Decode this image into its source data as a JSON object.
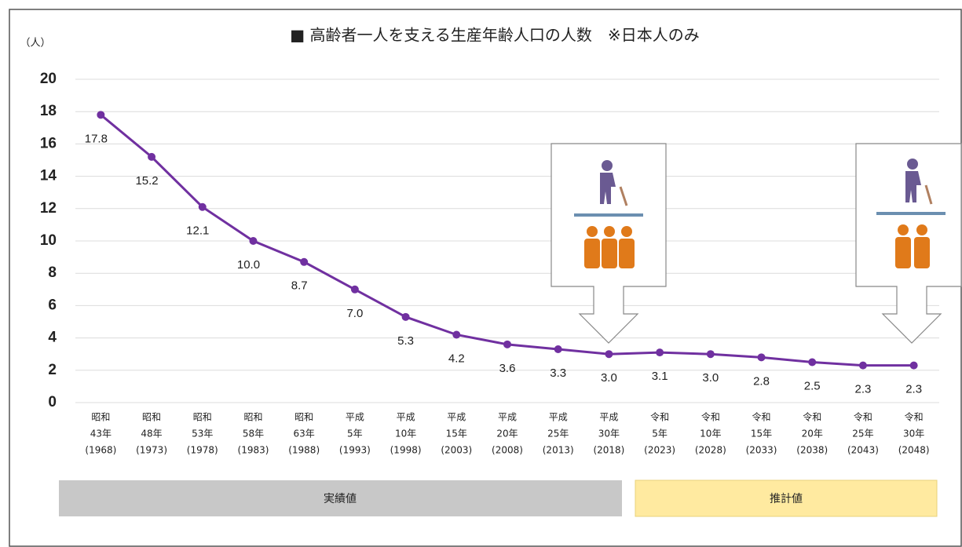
{
  "chart_data": {
    "type": "line",
    "title": "■ 高齢者一人を支える生産年齢人口の人数　※日本人のみ",
    "y_label": "（人）",
    "categories": [
      [
        "昭和",
        "43年",
        "(1968)"
      ],
      [
        "昭和",
        "48年",
        "(1973)"
      ],
      [
        "昭和",
        "53年",
        "(1978)"
      ],
      [
        "昭和",
        "58年",
        "(1983)"
      ],
      [
        "昭和",
        "63年",
        "(1988)"
      ],
      [
        "平成",
        "5年",
        "(1993)"
      ],
      [
        "平成",
        "10年",
        "(1998)"
      ],
      [
        "平成",
        "15年",
        "(2003)"
      ],
      [
        "平成",
        "20年",
        "(2008)"
      ],
      [
        "平成",
        "25年",
        "(2013)"
      ],
      [
        "平成",
        "30年",
        "(2018)"
      ],
      [
        "令和",
        "5年",
        "(2023)"
      ],
      [
        "令和",
        "10年",
        "(2028)"
      ],
      [
        "令和",
        "15年",
        "(2033)"
      ],
      [
        "令和",
        "20年",
        "(2038)"
      ],
      [
        "令和",
        "25年",
        "(2043)"
      ],
      [
        "令和",
        "30年",
        "(2048)"
      ]
    ],
    "values": [
      17.8,
      15.2,
      12.1,
      10.0,
      8.7,
      7.0,
      5.3,
      4.2,
      3.6,
      3.3,
      3.0,
      3.1,
      3.0,
      2.8,
      2.5,
      2.3,
      2.3
    ],
    "value_labels": [
      "17.8",
      "15.2",
      "12.1",
      "10.0",
      "8.7",
      "7.0",
      "5.3",
      "4.2",
      "3.6",
      "3.3",
      "3.0",
      "3.1",
      "3.0",
      "2.8",
      "2.5",
      "2.3",
      "2.3"
    ],
    "color": "#7030a0",
    "ylim": [
      0,
      20
    ],
    "yticks": [
      0,
      2,
      4,
      6,
      8,
      10,
      12,
      14,
      16,
      18,
      20
    ],
    "grid": true,
    "periods": [
      "実績値",
      "推計値"
    ]
  }
}
